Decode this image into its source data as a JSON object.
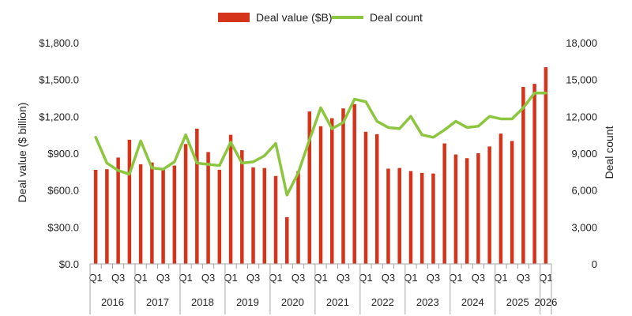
{
  "chart_data": {
    "type": "bar",
    "categories": [
      "2016 Q1",
      "2016 Q2",
      "2016 Q3",
      "2016 Q4",
      "2017 Q1",
      "2017 Q2",
      "2017 Q3",
      "2017 Q4",
      "2018 Q1",
      "2018 Q2",
      "2018 Q3",
      "2018 Q4",
      "2019 Q1",
      "2019 Q2",
      "2019 Q3",
      "2019 Q4",
      "2020 Q1",
      "2020 Q2",
      "2020 Q3",
      "2020 Q4",
      "2021 Q1",
      "2021 Q2",
      "2021 Q3",
      "2021 Q4",
      "2022 Q1",
      "2022 Q2",
      "2022 Q3",
      "2022 Q4",
      "2023 Q1",
      "2023 Q2",
      "2023 Q3",
      "2023 Q4",
      "2024 Q1",
      "2024 Q2",
      "2024 Q3",
      "2024 Q4",
      "2025 Q1",
      "2025 Q2",
      "2025 Q3",
      "2025 Q4",
      "2026 Q1"
    ],
    "x_quarter_labels": [
      "Q1",
      "",
      "Q3",
      "",
      "Q1",
      "",
      "Q3",
      "",
      "Q1",
      "",
      "Q3",
      "",
      "Q1",
      "",
      "Q3",
      "",
      "Q1",
      "",
      "Q3",
      "",
      "Q1",
      "",
      "Q3",
      "",
      "Q1",
      "",
      "Q3",
      "",
      "Q1",
      "",
      "Q3",
      "",
      "Q1",
      "",
      "Q3",
      "",
      "Q1",
      "",
      "Q3",
      "",
      "Q1"
    ],
    "x_years": [
      {
        "label": "2016",
        "start": 0,
        "end": 3
      },
      {
        "label": "2017",
        "start": 4,
        "end": 7
      },
      {
        "label": "2018",
        "start": 8,
        "end": 11
      },
      {
        "label": "2019",
        "start": 12,
        "end": 15
      },
      {
        "label": "2020",
        "start": 16,
        "end": 19
      },
      {
        "label": "2021",
        "start": 20,
        "end": 23
      },
      {
        "label": "2022",
        "start": 24,
        "end": 27
      },
      {
        "label": "2023",
        "start": 28,
        "end": 31
      },
      {
        "label": "2024",
        "start": 32,
        "end": 35
      },
      {
        "label": "2025",
        "start": 36,
        "end": 39
      },
      {
        "label": "2026",
        "start": 40,
        "end": 40
      }
    ],
    "series": [
      {
        "name": "Deal value ($B)",
        "type": "bar",
        "axis": "left",
        "color": "#d6341a",
        "values": [
          765,
          770,
          865,
          1010,
          810,
          825,
          775,
          800,
          975,
          1100,
          910,
          765,
          1050,
          925,
          785,
          780,
          715,
          380,
          755,
          1240,
          1120,
          1185,
          1265,
          1300,
          1075,
          1055,
          775,
          780,
          755,
          740,
          735,
          980,
          890,
          860,
          900,
          955,
          1060,
          1000,
          1440,
          1465,
          1600
        ]
      },
      {
        "name": "Deal count",
        "type": "line",
        "axis": "right",
        "color": "#8cc63f",
        "values": [
          10300,
          8200,
          7600,
          7300,
          10000,
          7800,
          7700,
          8300,
          10500,
          8200,
          8100,
          8000,
          9900,
          8200,
          8300,
          8800,
          9800,
          5600,
          7400,
          10100,
          12700,
          11000,
          11500,
          13400,
          13200,
          11600,
          11100,
          11000,
          12000,
          10500,
          10300,
          10900,
          11600,
          11100,
          11200,
          12000,
          11800,
          11800,
          12700,
          13900,
          13900
        ]
      }
    ],
    "y_left": {
      "label": "Deal value ($ billion)",
      "min": 0,
      "max": 1800,
      "ticks": [
        0,
        300,
        600,
        900,
        1200,
        1500,
        1800
      ],
      "tick_labels": [
        "$0.0",
        "$300.0",
        "$600.0",
        "$900.0",
        "$1,200.0",
        "$1,500.0",
        "$1,800.0"
      ]
    },
    "y_right": {
      "label": "Deal count",
      "min": 0,
      "max": 18000,
      "ticks": [
        0,
        3000,
        6000,
        9000,
        12000,
        15000,
        18000
      ],
      "tick_labels": [
        "0",
        "3,000",
        "6,000",
        "9,000",
        "12,000",
        "15,000",
        "18,000"
      ]
    },
    "legend": {
      "position": "top-center",
      "items": [
        {
          "label": "Deal value ($B)",
          "swatch": "bar"
        },
        {
          "label": "Deal count",
          "swatch": "line"
        }
      ]
    },
    "grid": false
  }
}
